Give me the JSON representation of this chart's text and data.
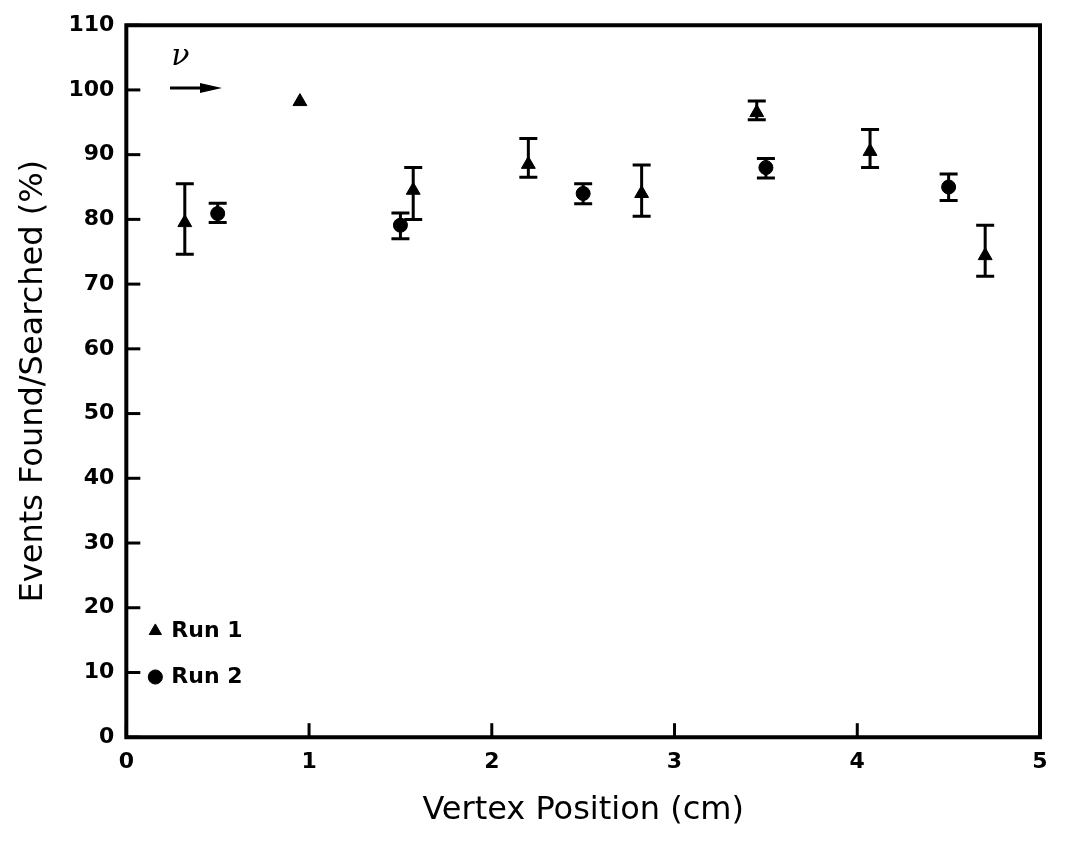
{
  "chart_data": {
    "type": "scatter",
    "xlabel": "Vertex Position (cm)",
    "ylabel": "Events Found/Searched (%)",
    "xlim": [
      0,
      5
    ],
    "xticks": [
      0,
      1,
      2,
      3,
      4,
      5
    ],
    "ylim": [
      0,
      110
    ],
    "yticks": [
      0,
      10,
      20,
      30,
      40,
      50,
      60,
      70,
      80,
      90,
      100,
      110
    ],
    "grid": false,
    "legend": "bottom left",
    "annotations": [
      "ν"
    ],
    "series": [
      {
        "name": "Run 1",
        "color": "#000000",
        "marker": "triangle",
        "x": [
          0.32,
          0.95,
          1.57,
          2.2,
          2.82,
          3.45,
          4.07,
          4.7
        ],
        "values": [
          79.5,
          98.2,
          84.5,
          88.5,
          84.0,
          96.5,
          90.5,
          74.4
        ],
        "errors": [
          [
            74.6,
            85.5
          ],
          null,
          [
            80.0,
            88.0
          ],
          [
            86.5,
            92.5
          ],
          [
            80.5,
            88.4
          ],
          [
            95.4,
            98.3
          ],
          [
            88.0,
            93.9
          ],
          [
            71.2,
            79.1
          ]
        ]
      },
      {
        "name": "Run 2",
        "color": "#000000",
        "marker": "circle",
        "x": [
          0.5,
          1.5,
          2.5,
          3.5,
          4.5
        ],
        "values": [
          80.9,
          79.1,
          84.0,
          88.0,
          85.0
        ],
        "errors": [
          [
            79.5,
            82.5
          ],
          [
            77.0,
            81.0
          ],
          [
            82.4,
            85.5
          ],
          [
            86.4,
            89.4
          ],
          [
            82.9,
            87.0
          ]
        ]
      }
    ]
  }
}
